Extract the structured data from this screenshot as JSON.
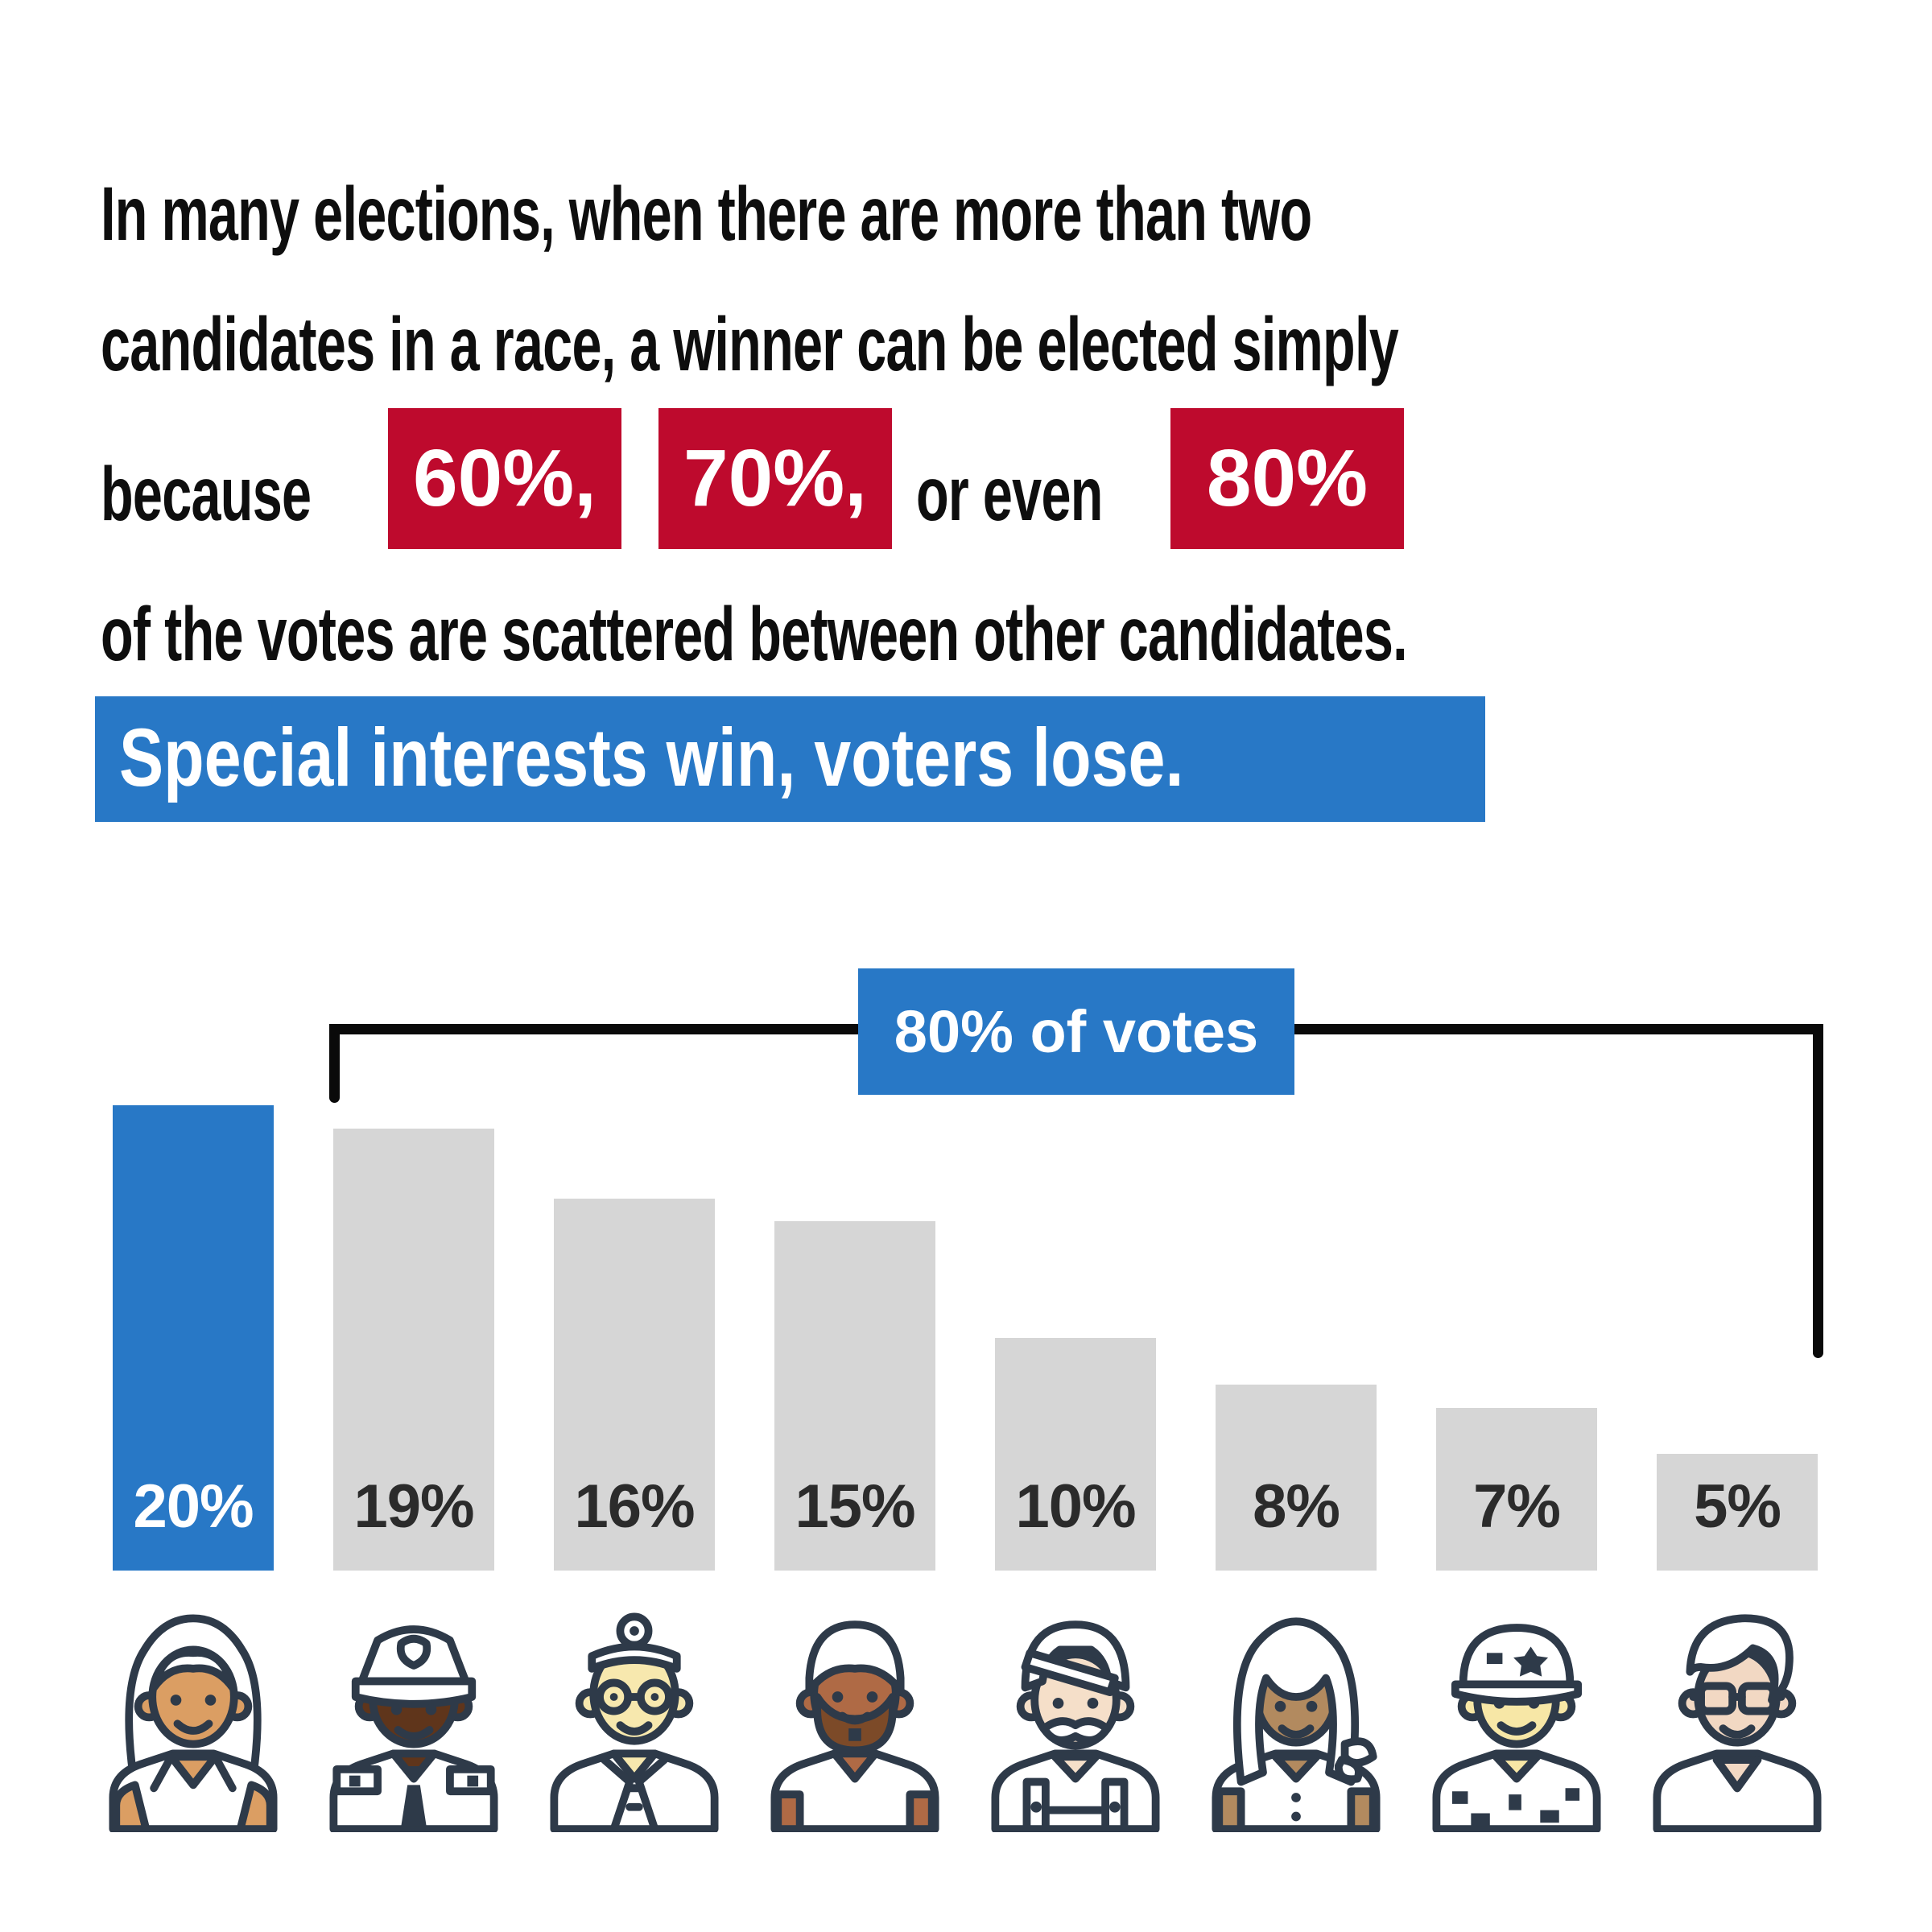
{
  "colors": {
    "red": "#be0a2d",
    "blue": "#2878c6",
    "bar_gray": "#d6d6d6",
    "text_black": "#0e0e0e",
    "outline_navy": "#2e3a49"
  },
  "intro": {
    "line1": "In many elections, when there are more than two",
    "line2": "candidates in a race, a winner can be elected simply",
    "line3_prefix": "because",
    "highlight1": "60%,",
    "highlight2": "70%,",
    "line3_middle": "or even",
    "highlight3": "80%",
    "line4": "of the votes are scattered between other candidates.",
    "tagline": "Special interests win, voters lose."
  },
  "chart_data": {
    "type": "bar",
    "title": "",
    "categories": [
      "woman with long gray hair",
      "police officer",
      "doctor with head mirror",
      "man with beard",
      "man with turban and mustache",
      "woman with headscarf",
      "soldier in camo helmet",
      "young man with glasses"
    ],
    "values": [
      20,
      19,
      16,
      15,
      10,
      8,
      7,
      5
    ],
    "labels": [
      "20%",
      "19%",
      "16%",
      "15%",
      "10%",
      "8%",
      "7%",
      "5%"
    ],
    "winner_index": 0,
    "annotation": "80% of votes",
    "annotation_covers": "bars 2 through 8",
    "xlabel": "",
    "ylabel": "",
    "legend": "none",
    "grid": false
  }
}
